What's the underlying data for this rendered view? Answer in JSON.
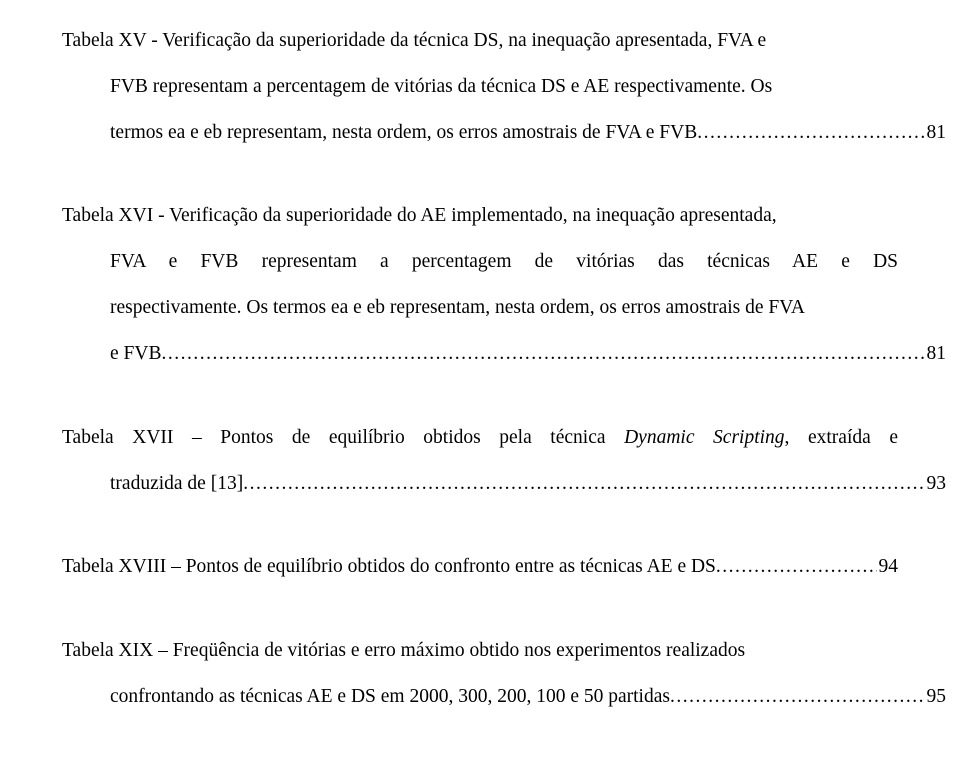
{
  "entries": [
    {
      "lines": [
        {
          "text": "Tabela XV - Verificação da superioridade da técnica DS, na inequação apresentada, FVA e",
          "indent": false
        },
        {
          "text": "FVB representam a percentagem de vitórias da técnica DS e AE respectivamente. Os",
          "indent": true
        },
        {
          "text_pre": "termos ea e eb representam, nesta ordem, os erros amostrais de FVA e FVB",
          "page": "81",
          "indent": true,
          "dotted": true
        }
      ]
    },
    {
      "lines": [
        {
          "text": "Tabela XVI - Verificação da superioridade do AE implementado, na inequação apresentada,",
          "indent": false
        },
        {
          "text": "FVA e FVB representam a percentagem de vitórias das técnicas AE e DS",
          "indent": true,
          "justify_spread": true
        },
        {
          "text": "respectivamente. Os termos ea e eb representam, nesta ordem, os erros amostrais de FVA",
          "indent": true
        },
        {
          "text_pre": "e FVB",
          "page": "81",
          "indent": true,
          "dotted": true
        }
      ]
    },
    {
      "lines": [
        {
          "text_parts": [
            {
              "t": "Tabela XVII – Pontos de equilíbrio obtidos pela técnica ",
              "italic": false
            },
            {
              "t": "Dynamic Scripting",
              "italic": true
            },
            {
              "t": ", extraída e",
              "italic": false
            }
          ],
          "indent": false
        },
        {
          "text_pre": "traduzida de [13]",
          "page": "93",
          "indent": true,
          "dotted": true
        }
      ]
    },
    {
      "lines": [
        {
          "text_pre": "Tabela XVIII – Pontos de equilíbrio obtidos do confronto entre as técnicas AE e DS",
          "page": "94",
          "indent": false,
          "dotted": true
        }
      ]
    },
    {
      "lines": [
        {
          "text": "Tabela XIX – Freqüência de vitórias e erro máximo obtido nos experimentos realizados",
          "indent": false
        },
        {
          "text_pre": "confrontando as técnicas AE e DS em 2000, 300, 200, 100 e 50 partidas",
          "page": "95",
          "indent": true,
          "dotted": true
        }
      ]
    }
  ],
  "dot_fill": "........................................................................................................................................................................................................"
}
